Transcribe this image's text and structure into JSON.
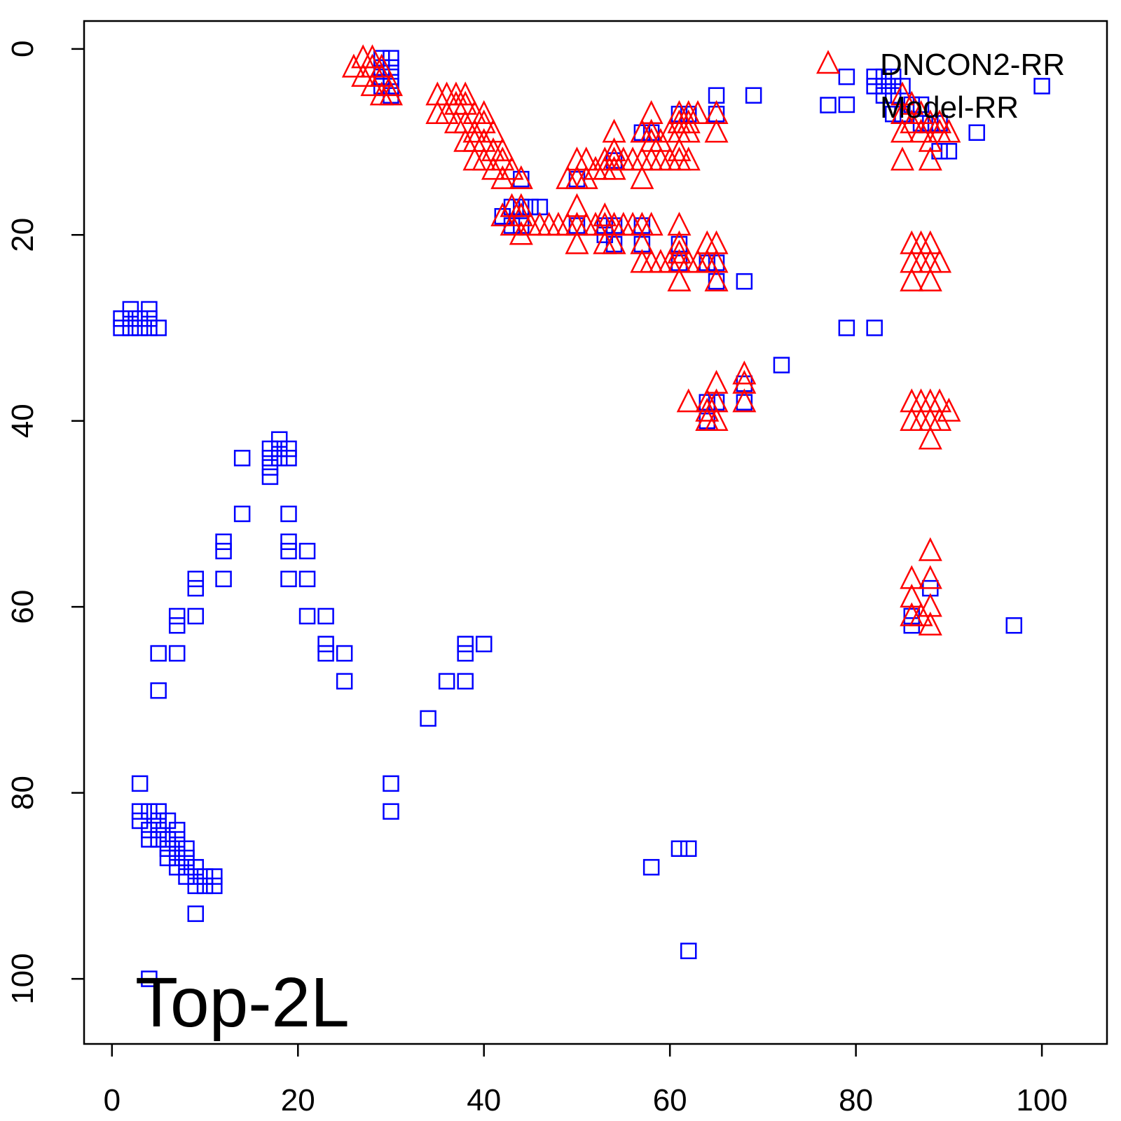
{
  "chart_data": {
    "type": "scatter",
    "title": "",
    "xlabel": "",
    "ylabel": "",
    "xlim": [
      -3,
      107
    ],
    "ylim": [
      -3,
      107
    ],
    "y_inverted": true,
    "x_ticks": [
      0,
      20,
      40,
      60,
      80,
      100
    ],
    "y_ticks": [
      0,
      20,
      40,
      60,
      80,
      100
    ],
    "x_tick_labels": [
      "0",
      "20",
      "40",
      "60",
      "80",
      "100"
    ],
    "y_tick_labels": [
      "0",
      "20",
      "40",
      "60",
      "80",
      "100"
    ],
    "grid": false,
    "annotation": "Top-2L",
    "legend": {
      "position": "top-right",
      "entries": [
        {
          "label": "DNCON2-RR",
          "marker": "triangle",
          "color": "#ff0000"
        },
        {
          "label": "Model-RR",
          "marker": "square",
          "color": "#0000ff"
        }
      ]
    },
    "series": [
      {
        "name": "DNCON2-RR",
        "marker": "triangle",
        "color": "#ff0000",
        "points": [
          [
            26,
            2
          ],
          [
            27,
            1
          ],
          [
            27,
            3
          ],
          [
            28,
            1
          ],
          [
            28,
            2
          ],
          [
            28,
            4
          ],
          [
            29,
            2
          ],
          [
            29,
            3
          ],
          [
            29,
            5
          ],
          [
            30,
            4
          ],
          [
            30,
            5
          ],
          [
            35,
            5
          ],
          [
            35,
            7
          ],
          [
            36,
            5
          ],
          [
            36,
            7
          ],
          [
            37,
            5
          ],
          [
            37,
            6
          ],
          [
            37,
            8
          ],
          [
            38,
            5
          ],
          [
            38,
            6
          ],
          [
            38,
            8
          ],
          [
            38,
            10
          ],
          [
            39,
            7
          ],
          [
            39,
            9
          ],
          [
            39,
            10
          ],
          [
            39,
            12
          ],
          [
            40,
            7
          ],
          [
            40,
            8
          ],
          [
            40,
            10
          ],
          [
            40,
            12
          ],
          [
            41,
            9
          ],
          [
            41,
            11
          ],
          [
            41,
            13
          ],
          [
            42,
            11
          ],
          [
            42,
            12
          ],
          [
            42,
            14
          ],
          [
            43,
            13
          ],
          [
            44,
            14
          ],
          [
            42,
            18
          ],
          [
            43,
            17
          ],
          [
            43,
            19
          ],
          [
            44,
            17
          ],
          [
            44,
            18
          ],
          [
            44,
            20
          ],
          [
            45,
            19
          ],
          [
            46,
            19
          ],
          [
            47,
            19
          ],
          [
            48,
            19
          ],
          [
            49,
            14
          ],
          [
            49,
            19
          ],
          [
            50,
            12
          ],
          [
            50,
            14
          ],
          [
            50,
            17
          ],
          [
            50,
            19
          ],
          [
            50,
            21
          ],
          [
            51,
            12
          ],
          [
            51,
            14
          ],
          [
            51,
            19
          ],
          [
            52,
            13
          ],
          [
            52,
            19
          ],
          [
            53,
            12
          ],
          [
            53,
            13
          ],
          [
            53,
            18
          ],
          [
            53,
            19
          ],
          [
            53,
            21
          ],
          [
            54,
            9
          ],
          [
            54,
            11
          ],
          [
            54,
            12
          ],
          [
            54,
            13
          ],
          [
            54,
            19
          ],
          [
            54,
            21
          ],
          [
            55,
            12
          ],
          [
            55,
            19
          ],
          [
            56,
            12
          ],
          [
            56,
            19
          ],
          [
            57,
            9
          ],
          [
            57,
            12
          ],
          [
            57,
            14
          ],
          [
            57,
            19
          ],
          [
            57,
            21
          ],
          [
            57,
            23
          ],
          [
            58,
            7
          ],
          [
            58,
            9
          ],
          [
            58,
            10
          ],
          [
            58,
            12
          ],
          [
            58,
            19
          ],
          [
            58,
            23
          ],
          [
            59,
            10
          ],
          [
            59,
            12
          ],
          [
            59,
            23
          ],
          [
            60,
            9
          ],
          [
            60,
            12
          ],
          [
            60,
            23
          ],
          [
            61,
            7
          ],
          [
            61,
            8
          ],
          [
            61,
            9
          ],
          [
            61,
            11
          ],
          [
            61,
            12
          ],
          [
            61,
            19
          ],
          [
            61,
            21
          ],
          [
            61,
            22
          ],
          [
            61,
            23
          ],
          [
            61,
            25
          ],
          [
            62,
            7
          ],
          [
            62,
            8
          ],
          [
            62,
            9
          ],
          [
            62,
            12
          ],
          [
            62,
            23
          ],
          [
            63,
            7
          ],
          [
            63,
            23
          ],
          [
            64,
            21
          ],
          [
            64,
            23
          ],
          [
            65,
            7
          ],
          [
            65,
            9
          ],
          [
            65,
            21
          ],
          [
            65,
            23
          ],
          [
            65,
            25
          ],
          [
            62,
            38
          ],
          [
            64,
            38
          ],
          [
            64,
            39
          ],
          [
            64,
            40
          ],
          [
            65,
            36
          ],
          [
            65,
            38
          ],
          [
            65,
            40
          ],
          [
            68,
            35
          ],
          [
            68,
            36
          ],
          [
            68,
            38
          ],
          [
            85,
            5
          ],
          [
            85,
            7
          ],
          [
            85,
            9
          ],
          [
            85,
            12
          ],
          [
            86,
            6
          ],
          [
            86,
            8
          ],
          [
            86,
            21
          ],
          [
            86,
            23
          ],
          [
            86,
            25
          ],
          [
            87,
            7
          ],
          [
            87,
            9
          ],
          [
            87,
            21
          ],
          [
            87,
            23
          ],
          [
            88,
            8
          ],
          [
            88,
            10
          ],
          [
            88,
            12
          ],
          [
            88,
            21
          ],
          [
            88,
            23
          ],
          [
            88,
            25
          ],
          [
            89,
            8
          ],
          [
            89,
            9
          ],
          [
            89,
            23
          ],
          [
            90,
            9
          ],
          [
            86,
            38
          ],
          [
            86,
            40
          ],
          [
            87,
            38
          ],
          [
            87,
            40
          ],
          [
            88,
            38
          ],
          [
            88,
            40
          ],
          [
            88,
            42
          ],
          [
            89,
            38
          ],
          [
            89,
            40
          ],
          [
            90,
            39
          ],
          [
            86,
            57
          ],
          [
            86,
            59
          ],
          [
            86,
            61
          ],
          [
            87,
            61
          ],
          [
            88,
            54
          ],
          [
            88,
            57
          ],
          [
            88,
            60
          ],
          [
            88,
            62
          ]
        ]
      },
      {
        "name": "Model-RR",
        "marker": "square",
        "color": "#0000ff",
        "points": [
          [
            29,
            1
          ],
          [
            29,
            2
          ],
          [
            29,
            3
          ],
          [
            29,
            4
          ],
          [
            30,
            1
          ],
          [
            30,
            2
          ],
          [
            30,
            3
          ],
          [
            30,
            4
          ],
          [
            30,
            5
          ],
          [
            44,
            14
          ],
          [
            42,
            18
          ],
          [
            43,
            17
          ],
          [
            43,
            19
          ],
          [
            44,
            17
          ],
          [
            44,
            19
          ],
          [
            45,
            17
          ],
          [
            46,
            17
          ],
          [
            50,
            14
          ],
          [
            50,
            19
          ],
          [
            53,
            19
          ],
          [
            53,
            20
          ],
          [
            54,
            12
          ],
          [
            54,
            19
          ],
          [
            54,
            21
          ],
          [
            57,
            9
          ],
          [
            57,
            19
          ],
          [
            57,
            21
          ],
          [
            58,
            9
          ],
          [
            61,
            7
          ],
          [
            61,
            21
          ],
          [
            61,
            23
          ],
          [
            62,
            7
          ],
          [
            64,
            23
          ],
          [
            65,
            5
          ],
          [
            65,
            7
          ],
          [
            65,
            23
          ],
          [
            65,
            25
          ],
          [
            68,
            25
          ],
          [
            69,
            5
          ],
          [
            64,
            38
          ],
          [
            64,
            40
          ],
          [
            65,
            38
          ],
          [
            68,
            36
          ],
          [
            68,
            38
          ],
          [
            72,
            34
          ],
          [
            79,
            3
          ],
          [
            79,
            6
          ],
          [
            82,
            3
          ],
          [
            82,
            4
          ],
          [
            83,
            3
          ],
          [
            83,
            4
          ],
          [
            83,
            5
          ],
          [
            84,
            3
          ],
          [
            84,
            4
          ],
          [
            84,
            5
          ],
          [
            84,
            7
          ],
          [
            85,
            4
          ],
          [
            85,
            7
          ],
          [
            86,
            6
          ],
          [
            87,
            6
          ],
          [
            87,
            8
          ],
          [
            88,
            8
          ],
          [
            89,
            8
          ],
          [
            89,
            11
          ],
          [
            90,
            11
          ],
          [
            93,
            9
          ],
          [
            100,
            4
          ],
          [
            79,
            30
          ],
          [
            82,
            30
          ],
          [
            86,
            61
          ],
          [
            86,
            62
          ],
          [
            88,
            58
          ],
          [
            97,
            62
          ],
          [
            1,
            29
          ],
          [
            1,
            30
          ],
          [
            2,
            28
          ],
          [
            2,
            29
          ],
          [
            2,
            30
          ],
          [
            3,
            29
          ],
          [
            3,
            30
          ],
          [
            4,
            28
          ],
          [
            4,
            29
          ],
          [
            4,
            30
          ],
          [
            5,
            30
          ],
          [
            14,
            44
          ],
          [
            14,
            50
          ],
          [
            17,
            43
          ],
          [
            17,
            44
          ],
          [
            17,
            45
          ],
          [
            17,
            46
          ],
          [
            18,
            42
          ],
          [
            18,
            43
          ],
          [
            18,
            44
          ],
          [
            19,
            43
          ],
          [
            19,
            44
          ],
          [
            19,
            50
          ],
          [
            19,
            53
          ],
          [
            19,
            54
          ],
          [
            19,
            57
          ],
          [
            12,
            53
          ],
          [
            12,
            54
          ],
          [
            12,
            57
          ],
          [
            9,
            57
          ],
          [
            9,
            58
          ],
          [
            9,
            61
          ],
          [
            7,
            61
          ],
          [
            7,
            62
          ],
          [
            7,
            65
          ],
          [
            5,
            65
          ],
          [
            5,
            69
          ],
          [
            21,
            54
          ],
          [
            21,
            57
          ],
          [
            21,
            61
          ],
          [
            23,
            61
          ],
          [
            23,
            64
          ],
          [
            23,
            65
          ],
          [
            25,
            65
          ],
          [
            25,
            68
          ],
          [
            38,
            64
          ],
          [
            38,
            65
          ],
          [
            40,
            64
          ],
          [
            36,
            68
          ],
          [
            38,
            68
          ],
          [
            34,
            72
          ],
          [
            30,
            79
          ],
          [
            30,
            82
          ],
          [
            3,
            79
          ],
          [
            3,
            82
          ],
          [
            3,
            83
          ],
          [
            4,
            82
          ],
          [
            4,
            84
          ],
          [
            4,
            85
          ],
          [
            5,
            82
          ],
          [
            5,
            83
          ],
          [
            5,
            84
          ],
          [
            5,
            85
          ],
          [
            6,
            83
          ],
          [
            6,
            85
          ],
          [
            6,
            86
          ],
          [
            6,
            87
          ],
          [
            7,
            84
          ],
          [
            7,
            85
          ],
          [
            7,
            86
          ],
          [
            7,
            87
          ],
          [
            7,
            88
          ],
          [
            8,
            86
          ],
          [
            8,
            87
          ],
          [
            8,
            88
          ],
          [
            8,
            89
          ],
          [
            9,
            88
          ],
          [
            9,
            89
          ],
          [
            9,
            90
          ],
          [
            9,
            93
          ],
          [
            10,
            89
          ],
          [
            10,
            90
          ],
          [
            11,
            89
          ],
          [
            11,
            90
          ],
          [
            58,
            88
          ],
          [
            61,
            86
          ],
          [
            62,
            86
          ],
          [
            62,
            97
          ],
          [
            4,
            100
          ]
        ]
      }
    ]
  }
}
